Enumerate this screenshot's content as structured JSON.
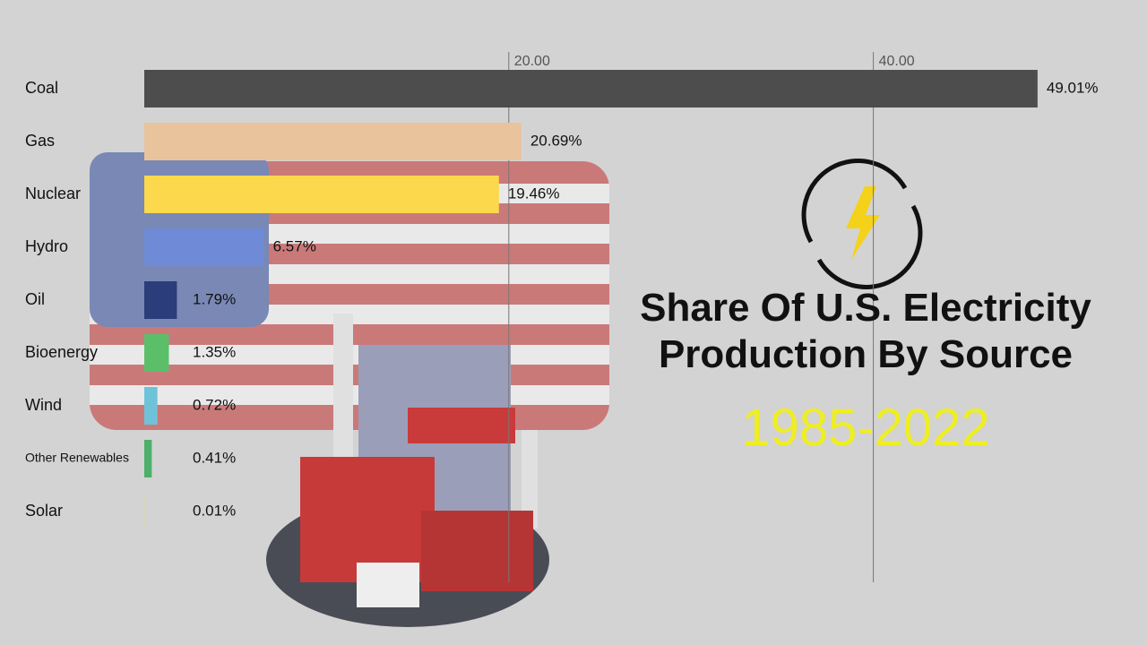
{
  "chart_data": {
    "type": "bar",
    "orientation": "horizontal",
    "title": "Share Of U.S. Electricity Production By Source",
    "subtitle": "1985-2022",
    "categories": [
      "Coal",
      "Gas",
      "Nuclear",
      "Hydro",
      "Oil",
      "Bioenergy",
      "Wind",
      "Other Renewables",
      "Solar"
    ],
    "values": [
      49.01,
      20.69,
      19.46,
      6.57,
      1.79,
      1.35,
      0.72,
      0.41,
      0.01
    ],
    "value_labels": [
      "49.01%",
      "20.69%",
      "19.46%",
      "6.57%",
      "1.79%",
      "1.35%",
      "0.72%",
      "0.41%",
      "0.01%"
    ],
    "colors": [
      "#4d4d4d",
      "#e8c39b",
      "#fbd84c",
      "#6f8ad6",
      "#2b3d7a",
      "#5bbf6a",
      "#6fc3d8",
      "#4caf6a",
      "#e6d94f"
    ],
    "xlim": [
      0,
      50
    ],
    "xticks": [
      {
        "value": 20,
        "label": "20.00"
      },
      {
        "value": 40,
        "label": "40.00"
      }
    ],
    "grid": true
  }
}
